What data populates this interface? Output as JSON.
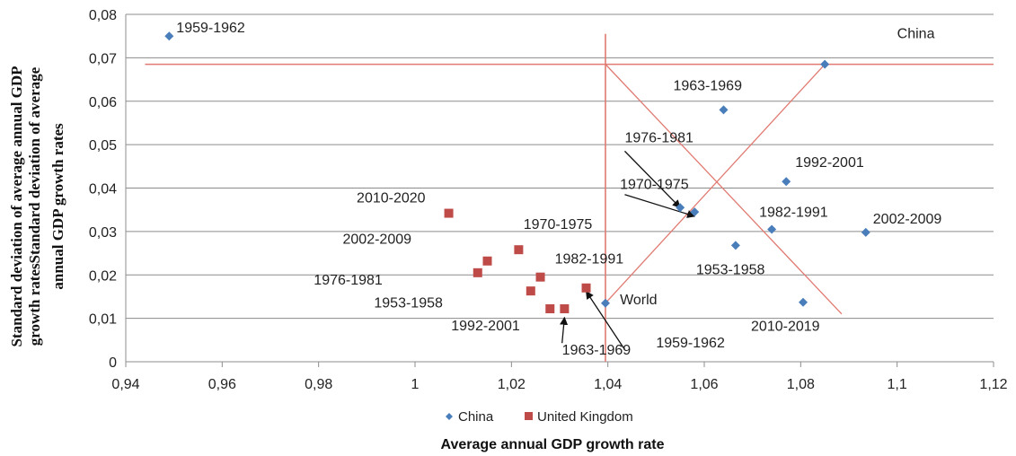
{
  "chart_data": {
    "type": "scatter",
    "xlabel": "Average annual GDP growth rate",
    "ylabel_lines": [
      "Standard deviation of average annual GDP",
      "growth ratesStandard deviation of average",
      "annual GDP growth rates"
    ],
    "xlim": [
      0.94,
      1.12
    ],
    "ylim": [
      0,
      0.08
    ],
    "x_ticks": [
      "0,94",
      "0,96",
      "0,98",
      "1",
      "1,02",
      "1,04",
      "1,06",
      "1,08",
      "1,1",
      "1,12"
    ],
    "y_ticks": [
      "0",
      "0,01",
      "0,02",
      "0,03",
      "0,04",
      "0,05",
      "0,06",
      "0,07",
      "0,08"
    ],
    "grid": "horizontal",
    "legend_position": "bottom",
    "series": [
      {
        "name": "China",
        "color": "#4a7ebb",
        "marker": "diamond",
        "points": [
          {
            "x": 0.949,
            "y": 0.075,
            "label": "1959-1962"
          },
          {
            "x": 1.085,
            "y": 0.0685,
            "label": ""
          },
          {
            "x": 1.064,
            "y": 0.058,
            "label": "1963-1969"
          },
          {
            "x": 1.077,
            "y": 0.0415,
            "label": "1992-2001"
          },
          {
            "x": 1.055,
            "y": 0.0355,
            "label": ""
          },
          {
            "x": 1.058,
            "y": 0.0345,
            "label": ""
          },
          {
            "x": 1.074,
            "y": 0.0305,
            "label": "1982-1991"
          },
          {
            "x": 1.0935,
            "y": 0.0298,
            "label": "2002-2009"
          },
          {
            "x": 1.0665,
            "y": 0.0268,
            "label": "1953-1958"
          },
          {
            "x": 1.0805,
            "y": 0.0137,
            "label": "2010-2019"
          },
          {
            "x": 1.0395,
            "y": 0.0135,
            "label": ""
          }
        ]
      },
      {
        "name": "United Kingdom",
        "color": "#be4b48",
        "marker": "square",
        "points": [
          {
            "x": 1.007,
            "y": 0.0342,
            "label": "2010-2020"
          },
          {
            "x": 1.015,
            "y": 0.0232,
            "label": ""
          },
          {
            "x": 1.013,
            "y": 0.0205,
            "label": ""
          },
          {
            "x": 1.0215,
            "y": 0.0258,
            "label": ""
          },
          {
            "x": 1.026,
            "y": 0.0195,
            "label": ""
          },
          {
            "x": 1.024,
            "y": 0.0163,
            "label": ""
          },
          {
            "x": 1.028,
            "y": 0.0122,
            "label": ""
          },
          {
            "x": 1.031,
            "y": 0.0122,
            "label": ""
          },
          {
            "x": 1.0355,
            "y": 0.017,
            "label": ""
          }
        ]
      }
    ],
    "annotations": [
      {
        "text": "China",
        "x": 1.1,
        "y": 0.0745
      },
      {
        "text": "World",
        "x": 1.0425,
        "y": 0.0132
      },
      {
        "text": "1976-1981",
        "x": 1.0435,
        "y": 0.0505
      },
      {
        "text": "1970-1975",
        "x": 1.0425,
        "y": 0.0398
      },
      {
        "text": "2002-2009",
        "x": 0.985,
        "y": 0.0272
      },
      {
        "text": "1970-1975",
        "x": 1.0225,
        "y": 0.0306
      },
      {
        "text": "1982-1991",
        "x": 1.029,
        "y": 0.0226
      },
      {
        "text": "1976-1981",
        "x": 0.979,
        "y": 0.0178
      },
      {
        "text": "1953-1958",
        "x": 0.9915,
        "y": 0.0125
      },
      {
        "text": "1992-2001",
        "x": 1.0075,
        "y": 0.0072
      },
      {
        "text": "1963-1969",
        "x": 1.0305,
        "y": 0.0017
      },
      {
        "text": "1959-1962",
        "x": 1.05,
        "y": 0.0033
      }
    ],
    "reference_lines": [
      {
        "x1": 0.944,
        "y1": 0.0685,
        "x2": 1.12,
        "y2": 0.0685
      },
      {
        "x1": 1.0395,
        "y1": 0.0755,
        "x2": 1.0395,
        "y2": 0
      },
      {
        "x1": 1.0395,
        "y1": 0.0135,
        "x2": 1.085,
        "y2": 0.0685
      },
      {
        "x1": 1.0395,
        "y1": 0.0685,
        "x2": 1.0885,
        "y2": 0.011
      }
    ],
    "arrows": [
      {
        "from_x": 1.0435,
        "from_y": 0.0485,
        "to_x": 1.055,
        "to_y": 0.0355
      },
      {
        "from_x": 1.0435,
        "from_y": 0.0385,
        "to_x": 1.058,
        "to_y": 0.0335
      },
      {
        "from_x": 1.0305,
        "from_y": 0.0043,
        "to_x": 1.031,
        "to_y": 0.0102
      },
      {
        "from_x": 1.0435,
        "from_y": 0.0028,
        "to_x": 1.0355,
        "to_y": 0.0162
      }
    ]
  }
}
